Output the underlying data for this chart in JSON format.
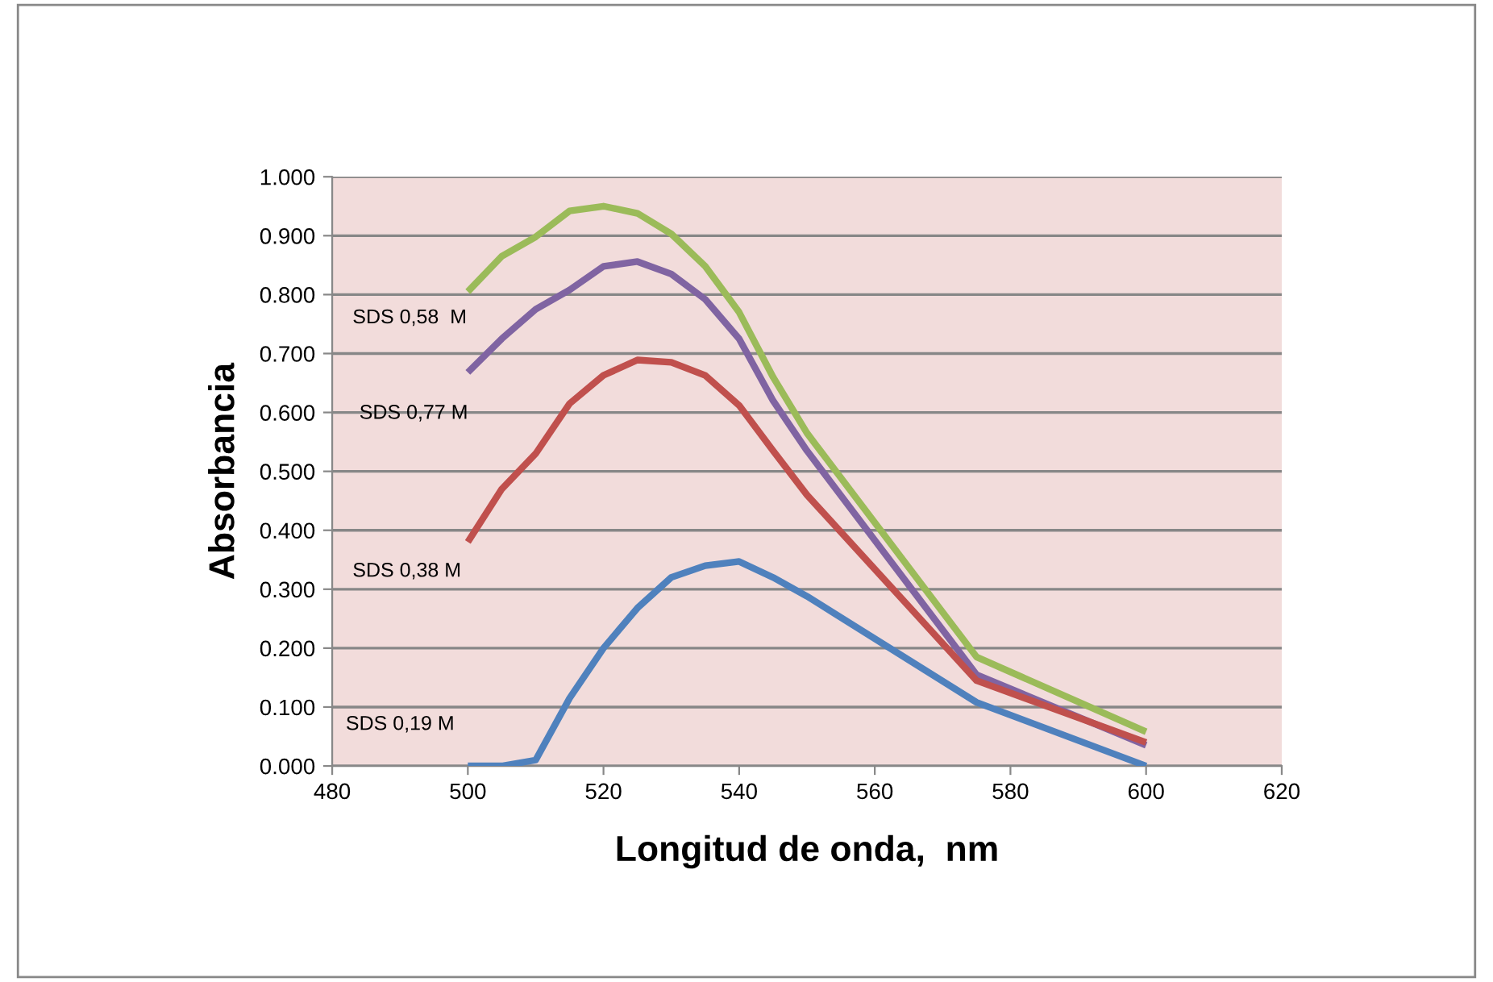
{
  "chart_data": {
    "type": "line",
    "xlabel": "Longitud de onda,  nm",
    "ylabel": "Absorbancia",
    "x": [
      500,
      505,
      510,
      515,
      520,
      525,
      530,
      535,
      540,
      545,
      550,
      575,
      600
    ],
    "series": [
      {
        "name": "SDS 0,58  M",
        "color": "#9bbb59",
        "values": [
          0.805,
          0.865,
          0.898,
          0.942,
          0.95,
          0.938,
          0.903,
          0.848,
          0.77,
          0.66,
          0.565,
          0.185,
          0.058
        ]
      },
      {
        "name": "SDS 0,77 M",
        "color": "#8064a2",
        "values": [
          0.668,
          0.725,
          0.775,
          0.808,
          0.848,
          0.856,
          0.835,
          0.792,
          0.725,
          0.62,
          0.535,
          0.155,
          0.035
        ]
      },
      {
        "name": "SDS 0,38 M",
        "color": "#c0504d",
        "values": [
          0.38,
          0.47,
          0.53,
          0.615,
          0.663,
          0.689,
          0.685,
          0.663,
          0.612,
          0.535,
          0.46,
          0.145,
          0.04
        ]
      },
      {
        "name": "SDS 0,19 M",
        "color": "#4f81bd",
        "values": [
          0,
          0,
          0.01,
          0.115,
          0.2,
          0.268,
          0.32,
          0.34,
          0.347,
          0.32,
          0.288,
          0.108,
          0
        ]
      }
    ],
    "xlim": [
      480,
      620
    ],
    "xticks": [
      480,
      500,
      520,
      540,
      560,
      580,
      600,
      620
    ],
    "ylim": [
      0,
      1
    ],
    "yticks": [
      {
        "value": 0,
        "label": "0.000"
      },
      {
        "value": 0.1,
        "label": "0.100"
      },
      {
        "value": 0.2,
        "label": "0.200"
      },
      {
        "value": 0.3,
        "label": "0.300"
      },
      {
        "value": 0.4,
        "label": "0.400"
      },
      {
        "value": 0.5,
        "label": "0.500"
      },
      {
        "value": 0.6,
        "label": "0.600"
      },
      {
        "value": 0.7,
        "label": "0.700"
      },
      {
        "value": 0.8,
        "label": "0.800"
      },
      {
        "value": 0.9,
        "label": "0.900"
      },
      {
        "value": 1.0,
        "label": "1.000"
      }
    ],
    "grid": "y",
    "marker": "none",
    "line_style": "solid"
  }
}
